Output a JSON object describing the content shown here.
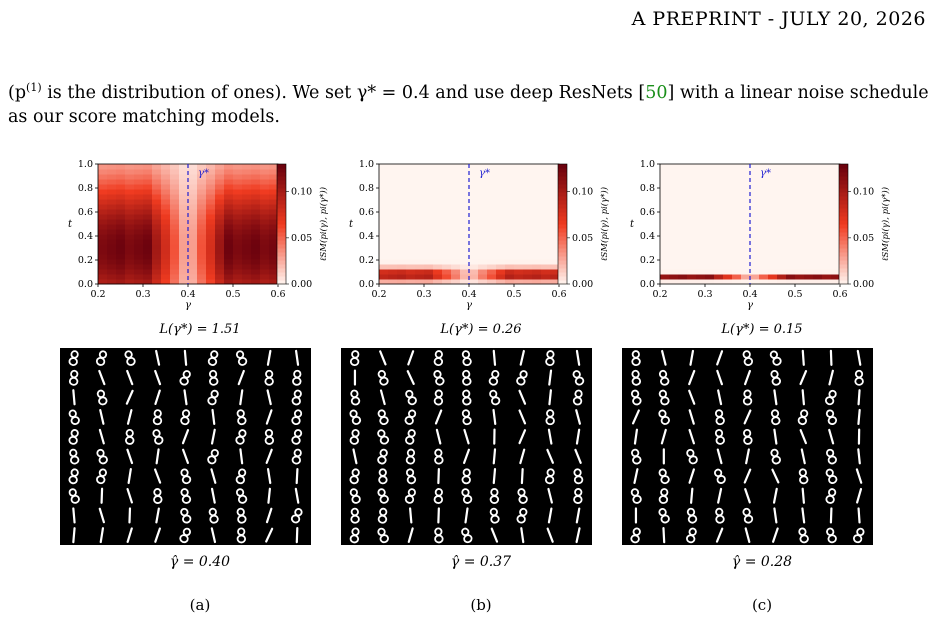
{
  "header": {
    "running_head": "A PREPRINT - JULY 20, 2026"
  },
  "paragraph": {
    "part1": "(p",
    "sup1": "(1)",
    "part2": " is the distribution of ones). We set γ* = 0.4 and use deep ResNets [",
    "cite": "50",
    "part3": "] with a linear noise schedule as our score matching models."
  },
  "colors": {
    "heat_low": "#fff5f0",
    "heat_high": "#67000d",
    "gamma_line": "#1f1fd1",
    "citation": "#1a8f1a"
  },
  "chart_data": [
    {
      "type": "heatmap",
      "panel": "(a)",
      "xlabel": "γ",
      "ylabel": "t",
      "xlim": [
        0.2,
        0.6
      ],
      "ylim": [
        0.0,
        1.0
      ],
      "xticks": [
        "0.2",
        "0.3",
        "0.4",
        "0.5",
        "0.6"
      ],
      "yticks": [
        "0.0",
        "0.2",
        "0.4",
        "0.6",
        "0.8",
        "1.0"
      ],
      "colorbar_label": "ℓSM(pi(γ), pi(γ*))",
      "colorbar_ticks": [
        "0.00",
        "0.05",
        "0.10"
      ],
      "colorbar_range": [
        0.0,
        0.13
      ],
      "gamma_star": 0.4,
      "gamma_star_label": "γ*",
      "loss_caption": "L(γ*) = 1.51",
      "sample_caption": "γ̂ = 0.40",
      "peak_t": 0.3,
      "spread_t": 0.6,
      "peak_value": 0.12
    },
    {
      "type": "heatmap",
      "panel": "(b)",
      "xlabel": "γ",
      "ylabel": "t",
      "xlim": [
        0.2,
        0.6
      ],
      "ylim": [
        0.0,
        1.0
      ],
      "xticks": [
        "0.2",
        "0.3",
        "0.4",
        "0.5",
        "0.6"
      ],
      "yticks": [
        "0.0",
        "0.2",
        "0.4",
        "0.6",
        "0.8",
        "1.0"
      ],
      "colorbar_label": "ℓSM(pi(γ), pi(γ*))",
      "colorbar_ticks": [
        "0.00",
        "0.05",
        "0.10"
      ],
      "colorbar_range": [
        0.0,
        0.13
      ],
      "gamma_star": 0.4,
      "gamma_star_label": "γ*",
      "loss_caption": "L(γ*) = 0.26",
      "sample_caption": "γ̂ = 0.37",
      "peak_t": 0.08,
      "spread_t": 0.05,
      "peak_value": 0.1
    },
    {
      "type": "heatmap",
      "panel": "(c)",
      "xlabel": "γ",
      "ylabel": "t",
      "xlim": [
        0.2,
        0.6
      ],
      "ylim": [
        0.0,
        1.0
      ],
      "xticks": [
        "0.2",
        "0.3",
        "0.4",
        "0.5",
        "0.6"
      ],
      "yticks": [
        "0.0",
        "0.2",
        "0.4",
        "0.6",
        "0.8",
        "1.0"
      ],
      "colorbar_label": "ℓSM(pi(γ), pi(γ*))",
      "colorbar_ticks": [
        "0.00",
        "0.05",
        "0.10"
      ],
      "colorbar_range": [
        0.0,
        0.13
      ],
      "gamma_star": 0.4,
      "gamma_star_label": "γ*",
      "loss_caption": "L(γ*) = 0.15",
      "sample_caption": "γ̂ = 0.28",
      "peak_t": 0.06,
      "spread_t": 0.02,
      "peak_value": 0.11
    }
  ],
  "panels": [
    {
      "label": "(a)"
    },
    {
      "label": "(b)"
    },
    {
      "label": "(c)"
    }
  ]
}
